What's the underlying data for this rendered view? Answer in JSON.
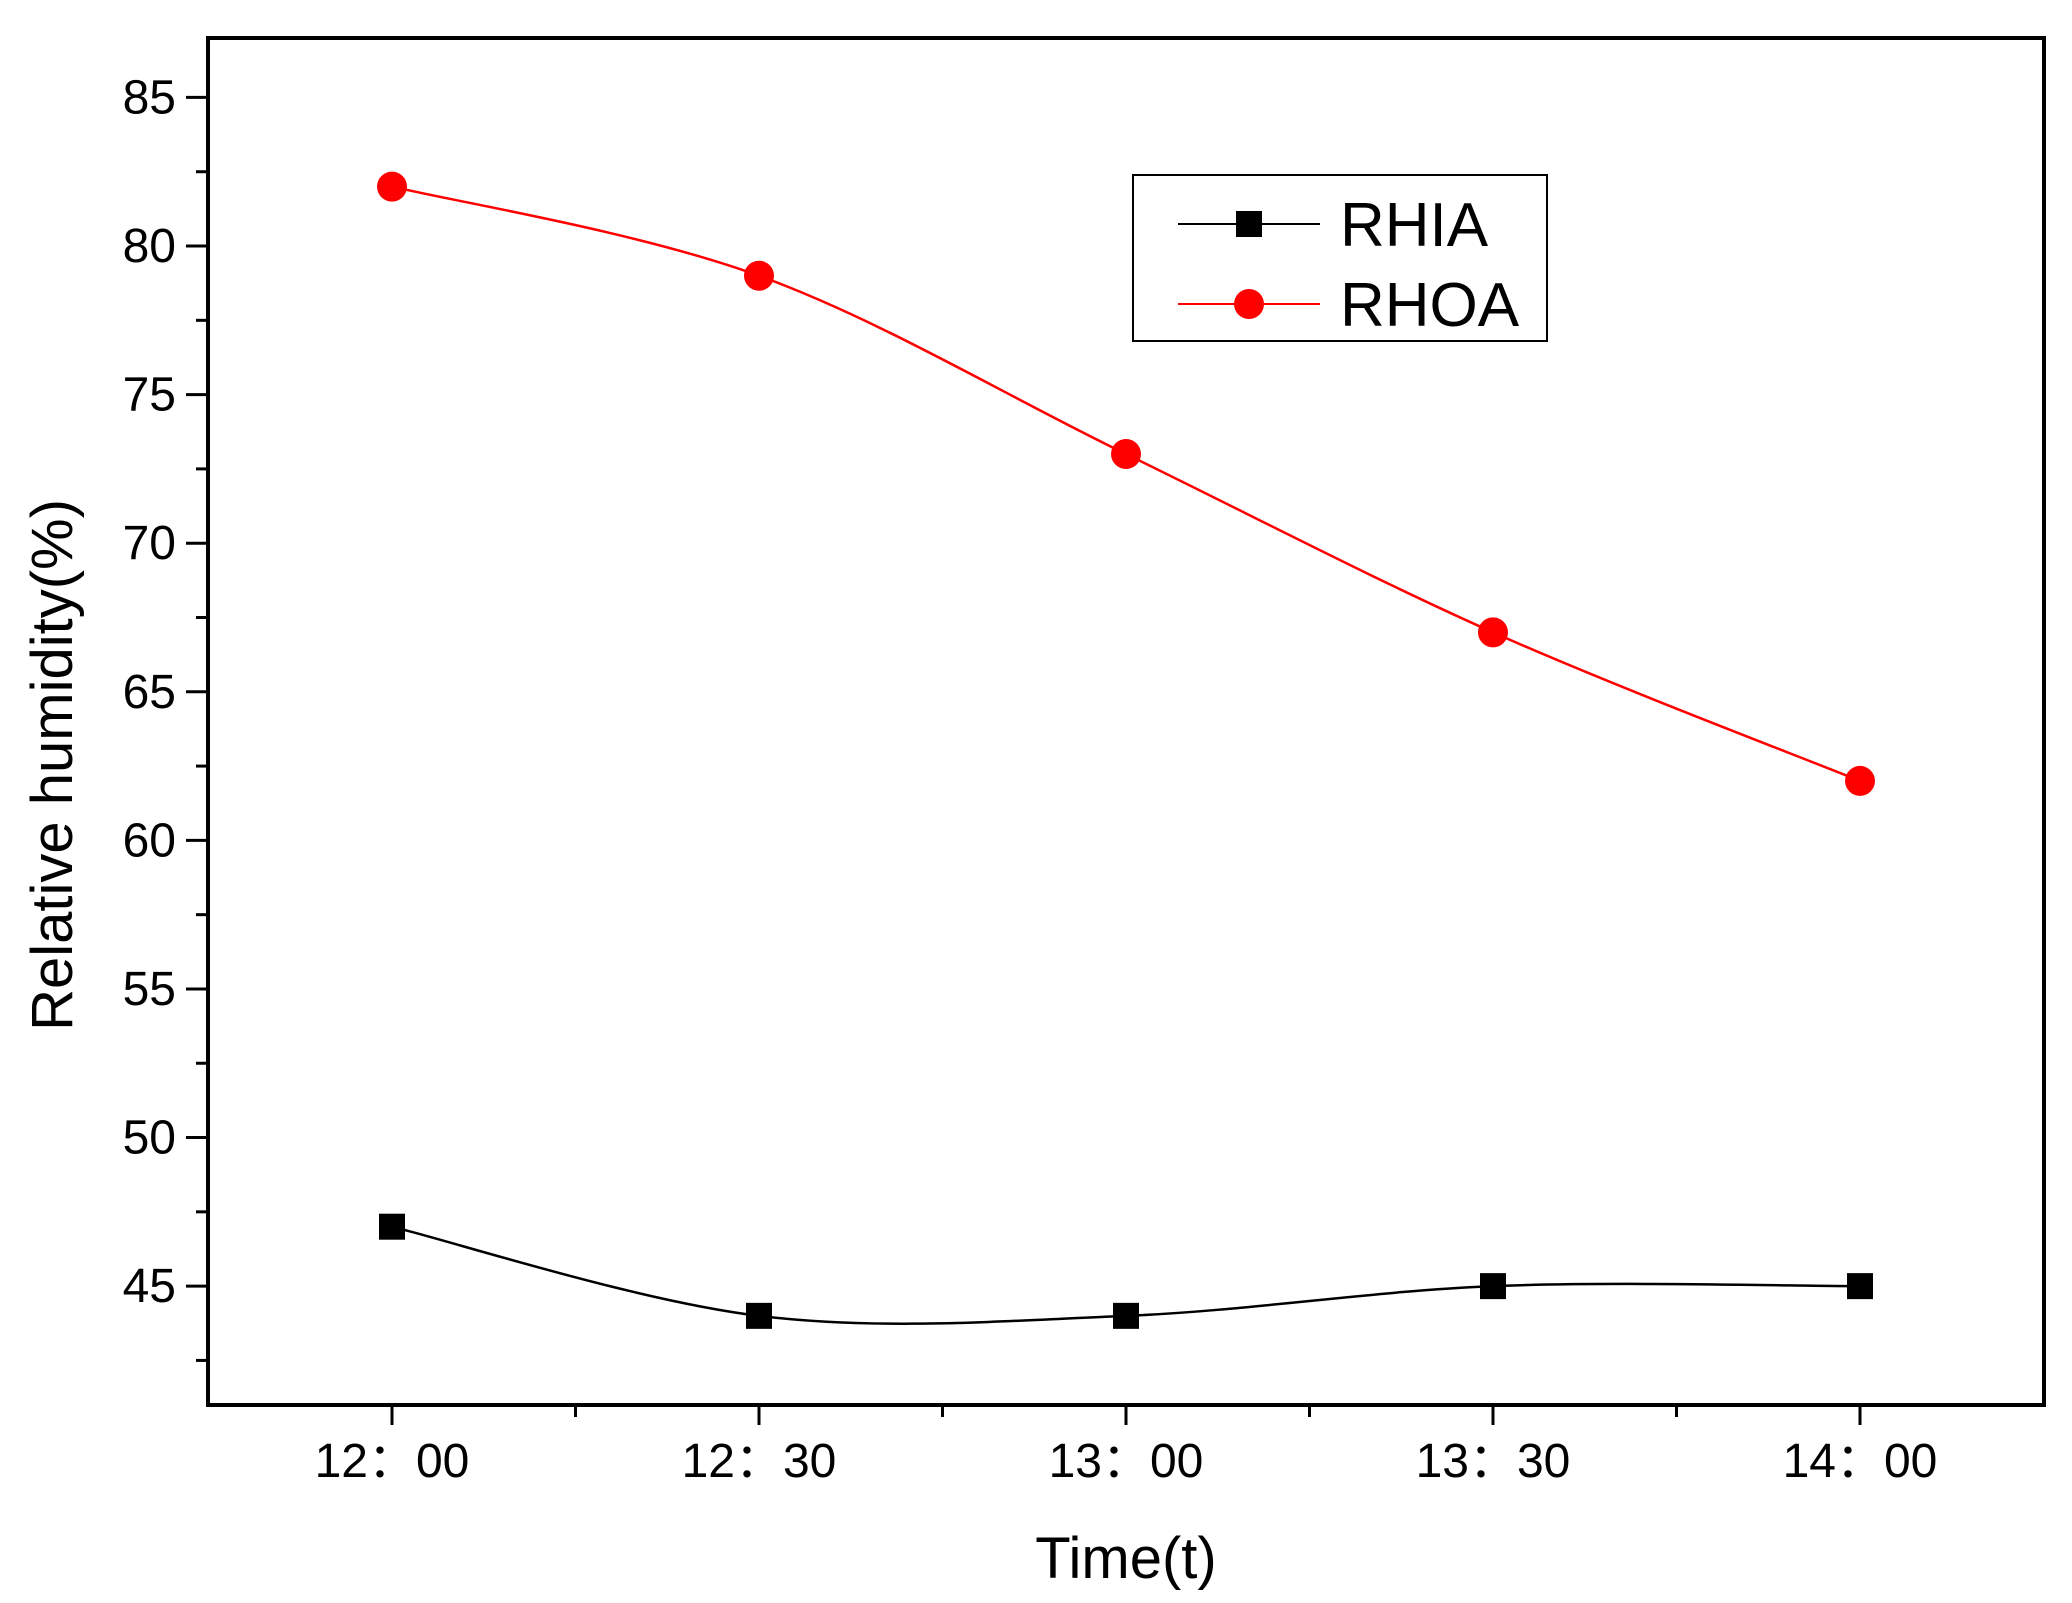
{
  "chart_data": {
    "type": "line",
    "title": "",
    "xlabel": "Time(t)",
    "ylabel": "Relative humidity(%)",
    "categories": [
      "12：00",
      "12：30",
      "13：00",
      "13：30",
      "14：00"
    ],
    "ylim": [
      41,
      87
    ],
    "yticks": [
      45,
      50,
      55,
      60,
      65,
      70,
      75,
      80,
      85
    ],
    "grid": false,
    "legend_position": "top-right",
    "series": [
      {
        "name": "RHIA",
        "color": "#000000",
        "marker": "square",
        "values": [
          47,
          44,
          44,
          45,
          45
        ]
      },
      {
        "name": "RHOA",
        "color": "#ff0000",
        "marker": "circle",
        "values": [
          82,
          79,
          73,
          67,
          62
        ]
      }
    ]
  }
}
